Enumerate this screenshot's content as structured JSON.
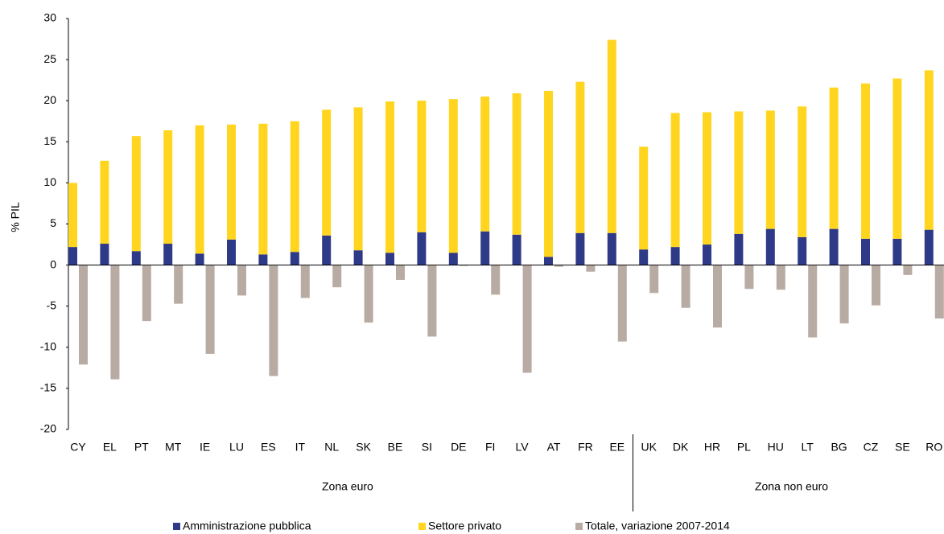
{
  "chart_data": {
    "type": "bar",
    "y_label": "% PIL",
    "categories": [
      "CY",
      "EL",
      "PT",
      "MT",
      "IE",
      "LU",
      "ES",
      "IT",
      "NL",
      "SK",
      "BE",
      "SI",
      "DE",
      "FI",
      "LV",
      "AT",
      "FR",
      "EE",
      "UK",
      "DK",
      "HR",
      "PL",
      "HU",
      "LT",
      "BG",
      "CZ",
      "SE",
      "RO"
    ],
    "groups": [
      {
        "label": "Zona euro",
        "span": [
          0,
          17
        ]
      },
      {
        "label": "Zona non euro",
        "span": [
          18,
          27
        ]
      }
    ],
    "series": [
      {
        "name": "Amministrazione pubblica",
        "color": "#2e3a87",
        "stack": true,
        "values": [
          2.2,
          2.6,
          1.7,
          2.6,
          1.4,
          3.1,
          1.3,
          1.6,
          3.6,
          1.8,
          1.5,
          4.0,
          1.5,
          4.1,
          3.7,
          1.0,
          3.9,
          3.9,
          1.9,
          2.2,
          2.5,
          3.8,
          4.4,
          3.4,
          4.4,
          3.2,
          3.2,
          4.3
        ]
      },
      {
        "name": "Settore privato",
        "color": "#ffd520",
        "stack": true,
        "values": [
          7.8,
          10.1,
          14.0,
          13.8,
          15.6,
          14.0,
          15.9,
          15.9,
          15.3,
          17.4,
          18.4,
          16.0,
          18.7,
          16.4,
          17.2,
          20.2,
          18.4,
          23.5,
          12.5,
          16.3,
          16.1,
          14.9,
          14.4,
          15.9,
          17.2,
          18.9,
          19.5,
          19.4
        ]
      },
      {
        "name": "Totale, variazione 2007-2014",
        "color": "#b8aba3",
        "stack": false,
        "values": [
          -12.1,
          -13.9,
          -6.8,
          -4.7,
          -10.8,
          -3.7,
          -13.5,
          -4.0,
          -2.7,
          -7.0,
          -1.8,
          -8.7,
          -0.1,
          -3.6,
          -13.1,
          -0.2,
          -0.8,
          -9.3,
          -3.4,
          -5.2,
          -7.6,
          -2.9,
          -3.0,
          -8.8,
          -7.1,
          -4.9,
          -1.2,
          -6.5
        ]
      }
    ],
    "ylim": [
      -20,
      30
    ],
    "yticks": [
      -20,
      -15,
      -10,
      -5,
      0,
      5,
      10,
      15,
      20,
      25,
      30
    ],
    "grid": false
  }
}
